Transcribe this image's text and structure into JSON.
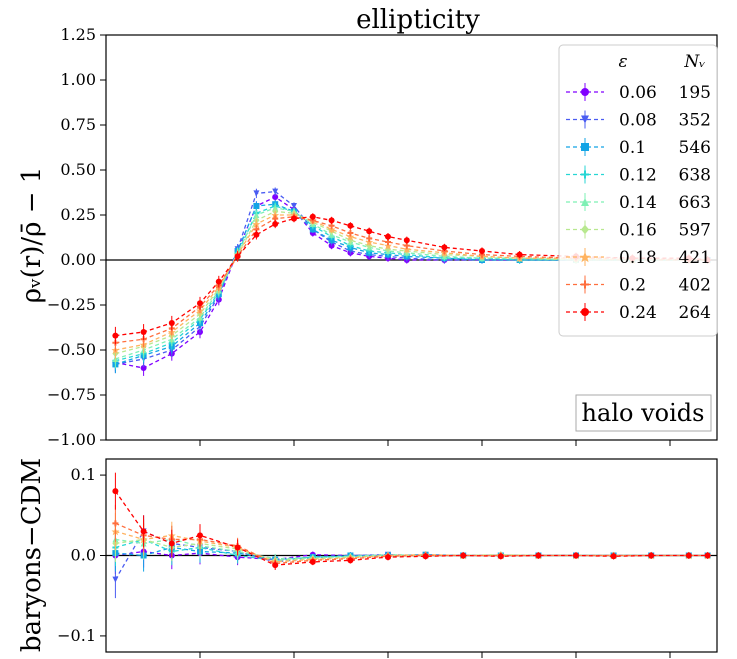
{
  "chart_data": [
    {
      "type": "line",
      "title": "ellipticity",
      "ylabel": "ρᵥ(r)/ρ̄ − 1",
      "xlabel": "",
      "ylim": [
        -1.0,
        1.25
      ],
      "xlim": [
        0.0,
        3.25
      ],
      "yticks": [
        -1.0,
        -0.75,
        -0.5,
        -0.25,
        0.0,
        0.25,
        0.5,
        0.75,
        1.0,
        1.25
      ],
      "ytick_labels": [
        "−1.00",
        "−0.75",
        "−0.50",
        "−0.25",
        "0.00",
        "0.25",
        "0.50",
        "0.75",
        "1.00",
        "1.25"
      ],
      "xticks": [
        0.5,
        1.0,
        1.5,
        2.0,
        2.5,
        3.0
      ],
      "annotation": "halo voids",
      "legend": {
        "placement": "top-right",
        "header_eps": "ε",
        "header_n": "Nᵥ",
        "entries": [
          {
            "eps": "0.06",
            "n": "195",
            "color": "#8000ff",
            "marker": "circle"
          },
          {
            "eps": "0.08",
            "n": "352",
            "color": "#4a5cf2",
            "marker": "triangle-down"
          },
          {
            "eps": "0.1",
            "n": "546",
            "color": "#13a4e5",
            "marker": "square"
          },
          {
            "eps": "0.12",
            "n": "638",
            "color": "#27d6d4",
            "marker": "plus"
          },
          {
            "eps": "0.14",
            "n": "663",
            "color": "#7ef0b5",
            "marker": "triangle-up"
          },
          {
            "eps": "0.16",
            "n": "597",
            "color": "#b8e88f",
            "marker": "diamond"
          },
          {
            "eps": "0.18",
            "n": "421",
            "color": "#ffb360",
            "marker": "star"
          },
          {
            "eps": "0.2",
            "n": "402",
            "color": "#ff6f3e",
            "marker": "plus"
          },
          {
            "eps": "0.24",
            "n": "264",
            "color": "#ff0000",
            "marker": "circle"
          }
        ]
      },
      "series": [
        {
          "name": "0.06",
          "x": [
            0.05,
            0.2,
            0.35,
            0.5,
            0.6,
            0.7,
            0.8,
            0.9,
            1.0,
            1.1,
            1.2,
            1.3,
            1.4,
            1.5,
            1.6,
            1.8,
            2.0,
            2.2,
            2.5,
            2.8,
            3.1,
            3.2
          ],
          "y": [
            -0.57,
            -0.6,
            -0.52,
            -0.4,
            -0.22,
            0.05,
            0.3,
            0.35,
            0.28,
            0.15,
            0.08,
            0.04,
            0.02,
            0.01,
            0.0,
            0.0,
            0.0,
            0.0,
            0.0,
            0.0,
            0.0,
            0.0
          ]
        },
        {
          "name": "0.08",
          "x": [
            0.05,
            0.2,
            0.35,
            0.5,
            0.6,
            0.7,
            0.8,
            0.9,
            1.0,
            1.1,
            1.2,
            1.3,
            1.4,
            1.5,
            1.6,
            1.8,
            2.0,
            2.2,
            2.5,
            2.8,
            3.1,
            3.2
          ],
          "y": [
            -0.58,
            -0.55,
            -0.5,
            -0.37,
            -0.2,
            0.06,
            0.37,
            0.38,
            0.3,
            0.17,
            0.1,
            0.05,
            0.03,
            0.02,
            0.01,
            0.0,
            0.0,
            0.0,
            0.0,
            0.0,
            0.0,
            0.0
          ]
        },
        {
          "name": "0.1",
          "x": [
            0.05,
            0.2,
            0.35,
            0.5,
            0.6,
            0.7,
            0.8,
            0.9,
            1.0,
            1.1,
            1.2,
            1.3,
            1.4,
            1.5,
            1.6,
            1.8,
            2.0,
            2.2,
            2.5,
            2.8,
            3.1,
            3.2
          ],
          "y": [
            -0.58,
            -0.53,
            -0.48,
            -0.35,
            -0.19,
            0.05,
            0.3,
            0.31,
            0.27,
            0.17,
            0.11,
            0.07,
            0.04,
            0.03,
            0.02,
            0.01,
            0.0,
            0.0,
            0.0,
            0.0,
            0.0,
            0.0
          ]
        },
        {
          "name": "0.12",
          "x": [
            0.05,
            0.2,
            0.35,
            0.5,
            0.6,
            0.7,
            0.8,
            0.9,
            1.0,
            1.1,
            1.2,
            1.3,
            1.4,
            1.5,
            1.6,
            1.8,
            2.0,
            2.2,
            2.5,
            2.8,
            3.1,
            3.2
          ],
          "y": [
            -0.56,
            -0.52,
            -0.46,
            -0.33,
            -0.18,
            0.04,
            0.26,
            0.3,
            0.27,
            0.19,
            0.13,
            0.08,
            0.05,
            0.04,
            0.03,
            0.01,
            0.01,
            0.0,
            0.0,
            0.0,
            0.0,
            0.0
          ]
        },
        {
          "name": "0.14",
          "x": [
            0.05,
            0.2,
            0.35,
            0.5,
            0.6,
            0.7,
            0.8,
            0.9,
            1.0,
            1.1,
            1.2,
            1.3,
            1.4,
            1.5,
            1.6,
            1.8,
            2.0,
            2.2,
            2.5,
            2.8,
            3.1,
            3.2
          ],
          "y": [
            -0.55,
            -0.5,
            -0.44,
            -0.32,
            -0.17,
            0.04,
            0.25,
            0.29,
            0.27,
            0.2,
            0.14,
            0.1,
            0.07,
            0.05,
            0.04,
            0.02,
            0.01,
            0.01,
            0.0,
            0.0,
            0.0,
            0.0
          ]
        },
        {
          "name": "0.16",
          "x": [
            0.05,
            0.2,
            0.35,
            0.5,
            0.6,
            0.7,
            0.8,
            0.9,
            1.0,
            1.1,
            1.2,
            1.3,
            1.4,
            1.5,
            1.6,
            1.8,
            2.0,
            2.2,
            2.5,
            2.8,
            3.1,
            3.2
          ],
          "y": [
            -0.52,
            -0.48,
            -0.42,
            -0.3,
            -0.16,
            0.03,
            0.22,
            0.27,
            0.26,
            0.21,
            0.16,
            0.11,
            0.08,
            0.06,
            0.05,
            0.03,
            0.02,
            0.01,
            0.0,
            0.0,
            0.0,
            0.0
          ]
        },
        {
          "name": "0.18",
          "x": [
            0.05,
            0.2,
            0.35,
            0.5,
            0.6,
            0.7,
            0.8,
            0.9,
            1.0,
            1.1,
            1.2,
            1.3,
            1.4,
            1.5,
            1.6,
            1.8,
            2.0,
            2.2,
            2.5,
            2.8,
            3.1,
            3.2
          ],
          "y": [
            -0.5,
            -0.47,
            -0.4,
            -0.28,
            -0.15,
            0.03,
            0.2,
            0.25,
            0.25,
            0.22,
            0.17,
            0.13,
            0.1,
            0.08,
            0.06,
            0.04,
            0.02,
            0.01,
            0.01,
            0.0,
            0.0,
            0.0
          ]
        },
        {
          "name": "0.2",
          "x": [
            0.05,
            0.2,
            0.35,
            0.5,
            0.6,
            0.7,
            0.8,
            0.9,
            1.0,
            1.1,
            1.2,
            1.3,
            1.4,
            1.5,
            1.6,
            1.8,
            2.0,
            2.2,
            2.5,
            2.8,
            3.1,
            3.2
          ],
          "y": [
            -0.46,
            -0.44,
            -0.38,
            -0.26,
            -0.14,
            0.02,
            0.17,
            0.23,
            0.24,
            0.22,
            0.19,
            0.15,
            0.12,
            0.1,
            0.08,
            0.05,
            0.03,
            0.02,
            0.01,
            0.01,
            0.0,
            0.0
          ]
        },
        {
          "name": "0.24",
          "x": [
            0.05,
            0.2,
            0.35,
            0.5,
            0.6,
            0.7,
            0.8,
            0.9,
            1.0,
            1.1,
            1.2,
            1.3,
            1.4,
            1.5,
            1.6,
            1.8,
            2.0,
            2.2,
            2.5,
            2.8,
            3.1,
            3.2
          ],
          "y": [
            -0.42,
            -0.4,
            -0.35,
            -0.24,
            -0.12,
            0.02,
            0.14,
            0.2,
            0.23,
            0.24,
            0.22,
            0.19,
            0.16,
            0.13,
            0.11,
            0.07,
            0.05,
            0.03,
            0.02,
            0.01,
            0.01,
            0.0
          ]
        }
      ]
    },
    {
      "type": "line",
      "title": "",
      "ylabel": "baryons−CDM",
      "xlabel": "",
      "ylim": [
        -0.12,
        0.12
      ],
      "xlim": [
        0.0,
        3.25
      ],
      "yticks": [
        -0.1,
        0.0,
        0.1
      ],
      "ytick_labels": [
        "−0.1",
        "0.0",
        "0.1"
      ],
      "xticks": [
        0.5,
        1.0,
        1.5,
        2.0,
        2.5,
        3.0
      ],
      "series": [
        {
          "name": "0.06",
          "x": [
            0.05,
            0.2,
            0.35,
            0.5,
            0.7,
            0.9,
            1.1,
            1.3,
            1.5,
            1.7,
            1.9,
            2.1,
            2.3,
            2.5,
            2.7,
            2.9,
            3.1,
            3.2
          ],
          "y": [
            0.0,
            0.005,
            0.0,
            0.003,
            -0.002,
            -0.005,
            0.001,
            0.0,
            0.0,
            0.001,
            0.0,
            0.0,
            0.0,
            0.0,
            0.0,
            0.0,
            0.0,
            0.0
          ]
        },
        {
          "name": "0.08",
          "x": [
            0.05,
            0.2,
            0.35,
            0.5,
            0.7,
            0.9,
            1.1,
            1.3,
            1.5,
            1.7,
            1.9,
            2.1,
            2.3,
            2.5,
            2.7,
            2.9,
            3.1,
            3.2
          ],
          "y": [
            -0.03,
            0.03,
            0.015,
            0.01,
            0.005,
            -0.008,
            -0.003,
            0.0,
            0.001,
            0.0,
            0.0,
            0.0,
            0.0,
            0.0,
            0.0,
            0.0,
            0.0,
            0.0
          ]
        },
        {
          "name": "0.1",
          "x": [
            0.05,
            0.2,
            0.35,
            0.5,
            0.7,
            0.9,
            1.1,
            1.3,
            1.5,
            1.7,
            1.9,
            2.1,
            2.3,
            2.5,
            2.7,
            2.9,
            3.1,
            3.2
          ],
          "y": [
            0.003,
            0.0,
            0.01,
            0.005,
            0.003,
            -0.005,
            -0.002,
            0.0,
            0.0,
            0.001,
            0.0,
            0.0,
            0.0,
            0.0,
            0.0,
            0.0,
            0.0,
            0.0
          ]
        },
        {
          "name": "0.12",
          "x": [
            0.05,
            0.2,
            0.35,
            0.5,
            0.7,
            0.9,
            1.1,
            1.3,
            1.5,
            1.7,
            1.9,
            2.1,
            2.3,
            2.5,
            2.7,
            2.9,
            3.1,
            3.2
          ],
          "y": [
            0.01,
            0.02,
            0.005,
            0.01,
            0.0,
            -0.006,
            -0.002,
            -0.001,
            0.0,
            0.0,
            0.0,
            0.0,
            0.0,
            0.0,
            0.0,
            0.0,
            0.0,
            0.0
          ]
        },
        {
          "name": "0.14",
          "x": [
            0.05,
            0.2,
            0.35,
            0.5,
            0.7,
            0.9,
            1.1,
            1.3,
            1.5,
            1.7,
            1.9,
            2.1,
            2.3,
            2.5,
            2.7,
            2.9,
            3.1,
            3.2
          ],
          "y": [
            0.02,
            0.015,
            0.02,
            0.012,
            0.005,
            -0.004,
            -0.003,
            -0.001,
            0.001,
            0.0,
            0.0,
            0.0,
            0.0,
            0.0,
            0.0,
            0.0,
            0.0,
            0.0
          ]
        },
        {
          "name": "0.16",
          "x": [
            0.05,
            0.2,
            0.35,
            0.5,
            0.7,
            0.9,
            1.1,
            1.3,
            1.5,
            1.7,
            1.9,
            2.1,
            2.3,
            2.5,
            2.7,
            2.9,
            3.1,
            3.2
          ],
          "y": [
            0.015,
            0.02,
            0.01,
            0.015,
            0.008,
            -0.006,
            -0.004,
            -0.002,
            0.0,
            0.0,
            0.0,
            0.001,
            0.0,
            0.0,
            0.0,
            0.0,
            0.0,
            0.0
          ]
        },
        {
          "name": "0.18",
          "x": [
            0.05,
            0.2,
            0.35,
            0.5,
            0.7,
            0.9,
            1.1,
            1.3,
            1.5,
            1.7,
            1.9,
            2.1,
            2.3,
            2.5,
            2.7,
            2.9,
            3.1,
            3.2
          ],
          "y": [
            0.03,
            0.02,
            0.025,
            0.018,
            0.01,
            -0.008,
            -0.005,
            -0.003,
            0.0,
            0.001,
            0.0,
            0.0,
            0.0,
            0.0,
            0.0,
            0.0,
            0.0,
            0.0
          ]
        },
        {
          "name": "0.2",
          "x": [
            0.05,
            0.2,
            0.35,
            0.5,
            0.7,
            0.9,
            1.1,
            1.3,
            1.5,
            1.7,
            1.9,
            2.1,
            2.3,
            2.5,
            2.7,
            2.9,
            3.1,
            3.2
          ],
          "y": [
            0.04,
            0.025,
            0.02,
            0.02,
            0.012,
            -0.01,
            -0.006,
            -0.004,
            -0.001,
            0.0,
            0.0,
            0.0,
            0.0,
            0.0,
            0.0,
            0.0,
            0.0,
            0.0
          ]
        },
        {
          "name": "0.24",
          "x": [
            0.05,
            0.2,
            0.35,
            0.5,
            0.7,
            0.9,
            1.1,
            1.3,
            1.5,
            1.7,
            1.9,
            2.1,
            2.3,
            2.5,
            2.7,
            2.9,
            3.1,
            3.2
          ],
          "y": [
            0.08,
            0.03,
            0.015,
            0.025,
            0.01,
            -0.012,
            -0.008,
            -0.006,
            -0.002,
            -0.001,
            0.0,
            -0.001,
            0.0,
            0.0,
            -0.001,
            0.0,
            0.0,
            0.0
          ]
        }
      ]
    }
  ]
}
